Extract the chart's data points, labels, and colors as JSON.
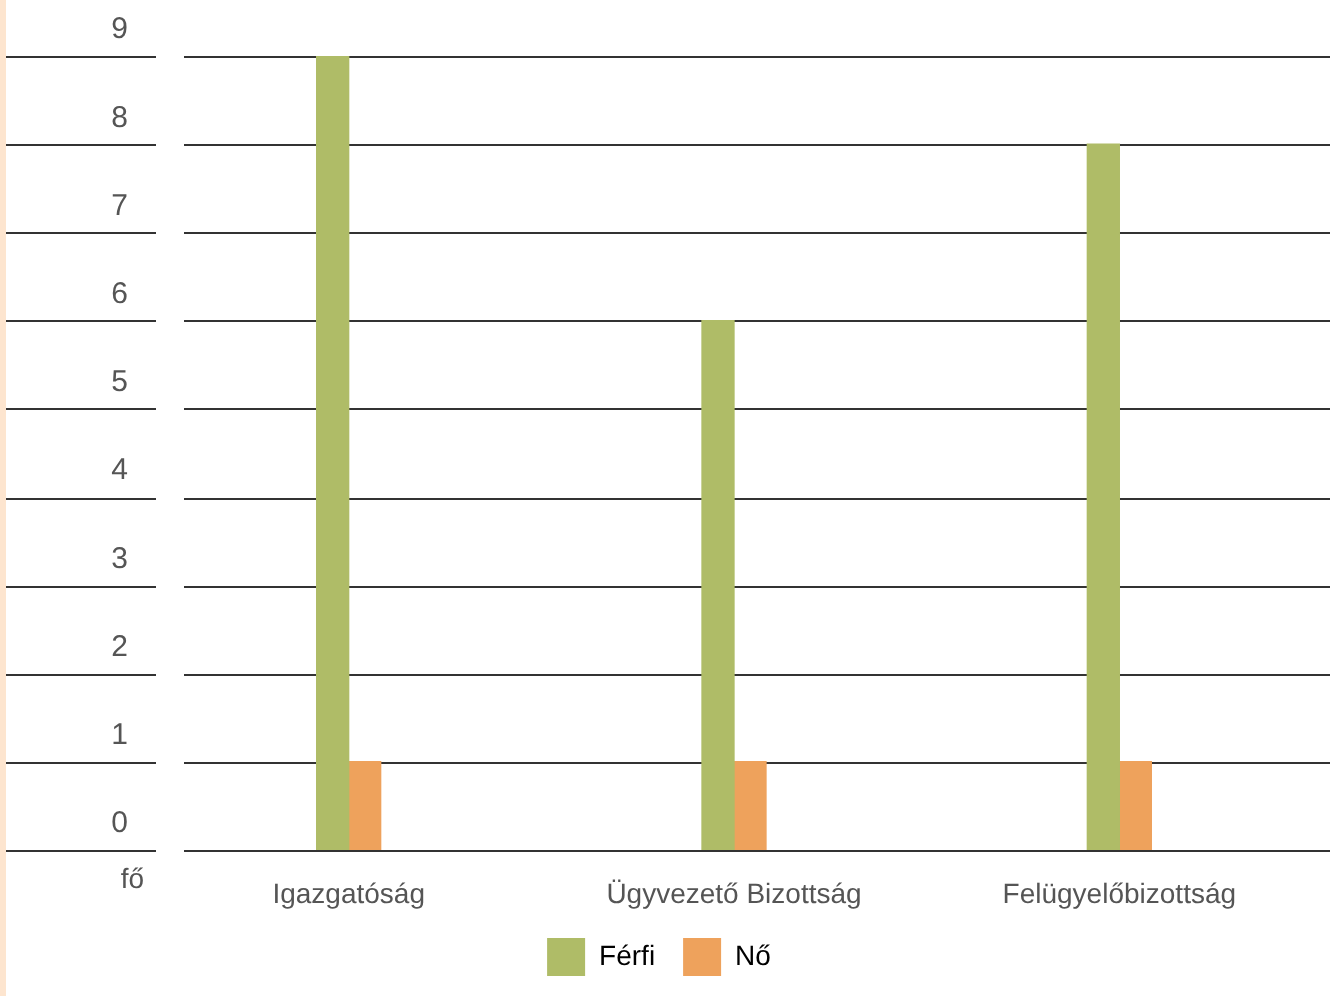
{
  "chart_data": {
    "type": "bar",
    "ylabel": "fő",
    "categories": [
      "Igazgatóság",
      "Ügyvezető Bizottság",
      "Felügyelőbizottság"
    ],
    "series": [
      {
        "name": "Férfi",
        "color": "#afbc67",
        "values": [
          9,
          6,
          8
        ]
      },
      {
        "name": "Nő",
        "color": "#eea25c",
        "values": [
          1,
          1,
          1
        ]
      }
    ],
    "ylim": [
      0,
      9
    ],
    "yticks": [
      0,
      1,
      2,
      3,
      4,
      5,
      6,
      7,
      8,
      9
    ],
    "grid": "y",
    "legend": "bottom"
  }
}
